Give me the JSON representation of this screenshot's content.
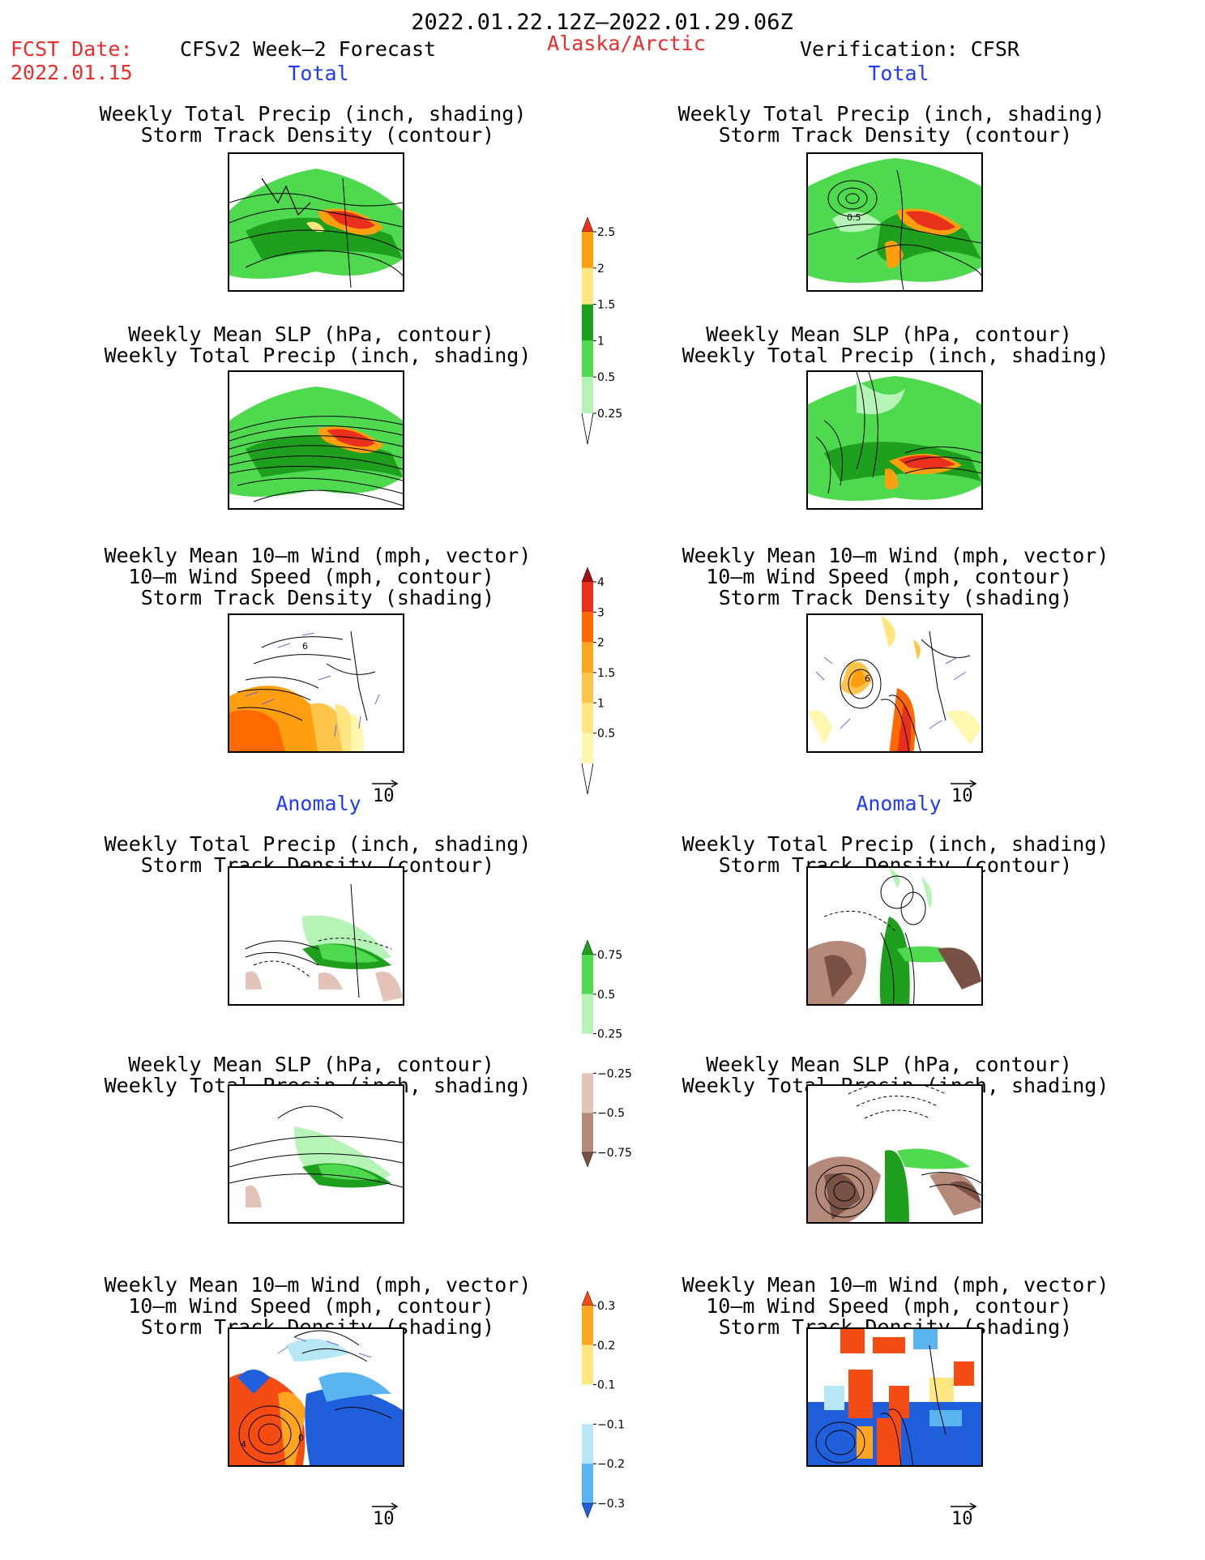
{
  "header": {
    "period": "2022.01.22.12Z—2022.01.29.06Z",
    "fcst_label": "FCST Date:",
    "fcst_date": "2022.01.15",
    "forecast_title": "CFSv2 Week—2 Forecast",
    "region": "Alaska/Arctic",
    "verification": "Verification: CFSR"
  },
  "sections": {
    "total": "Total",
    "anomaly": "Anomaly"
  },
  "titles": {
    "precip_track_1": "Weekly Total Precip (inch, shading)",
    "precip_track_2": "Storm Track Density (contour)",
    "slp_precip_1": "Weekly Mean SLP (hPa, contour)",
    "slp_precip_2": "Weekly Total Precip (inch, shading)",
    "wind_1": "Weekly Mean 10—m Wind (mph, vector)",
    "wind_2": "10—m Wind Speed (mph, contour)",
    "wind_3": "Storm Track Density (shading)"
  },
  "vector_ref": "10",
  "map_labels": {
    "cfsr_total_track_contour": "0.5",
    "fcst_total_wind_contour": "6",
    "cfsr_total_wind_contour": "6",
    "fcst_anom_wind_contour_a": "4",
    "fcst_anom_wind_contour_b": "0"
  },
  "colorbars": {
    "precip_total": {
      "labels": [
        "2.5",
        "2",
        "1.5",
        "1",
        "0.5",
        "0.25"
      ],
      "colors": [
        "#e8301c",
        "#ff9f0f",
        "#ffe680",
        "#1ea01e",
        "#4fd94f",
        "#b6f3b6"
      ]
    },
    "track_total": {
      "labels": [
        "4",
        "3",
        "2",
        "1.5",
        "1",
        "0.5"
      ],
      "colors": [
        "#a50f0f",
        "#e8301c",
        "#ff6a00",
        "#ffa51f",
        "#ffc54a",
        "#ffe680",
        "#fff6b0"
      ]
    },
    "precip_anom": {
      "labels": [
        "0.75",
        "0.5",
        "0.25",
        "−0.25",
        "−0.5",
        "−0.75"
      ],
      "colors": [
        "#1ea01e",
        "#4fd94f",
        "#b6f3b6",
        "#ffffff",
        "#e3c3b8",
        "#b58a7a",
        "#7a5245"
      ]
    },
    "track_anom": {
      "labels": [
        "0.3",
        "0.2",
        "0.1",
        "−0.1",
        "−0.2",
        "−0.3"
      ],
      "colors": [
        "#f54c14",
        "#ffa51f",
        "#ffe680",
        "#ffffff",
        "#b7e6f5",
        "#5ab4f0",
        "#1f5fdc"
      ]
    }
  }
}
